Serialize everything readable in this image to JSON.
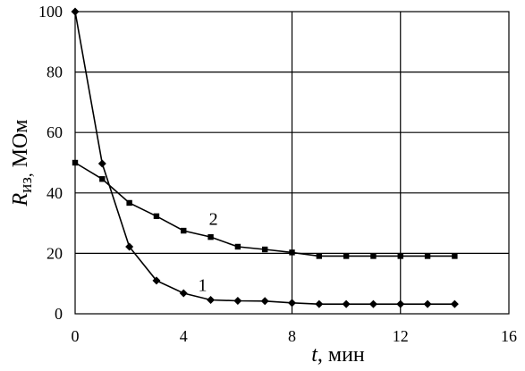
{
  "chart_data": {
    "type": "line",
    "xlabel": {
      "var": "t",
      "unit": ", мин"
    },
    "ylabel": {
      "var": "R",
      "sub": "из,",
      "unit": " МОм"
    },
    "xlim": [
      0,
      16
    ],
    "ylim": [
      0,
      100
    ],
    "xticks": [
      0,
      4,
      8,
      12,
      16
    ],
    "yticks": [
      0,
      20,
      40,
      60,
      80,
      100
    ],
    "grid": "horizontal at y ticks; vertical at x = 8 and 12",
    "series": [
      {
        "name": "1",
        "marker": "diamond",
        "x": [
          0,
          1,
          2,
          3,
          4,
          5,
          6,
          7,
          8,
          9,
          10,
          11,
          12,
          13,
          14
        ],
        "y": [
          100,
          49.7,
          22.2,
          11.0,
          6.8,
          4.6,
          4.3,
          4.2,
          3.6,
          3.2,
          3.2,
          3.2,
          3.2,
          3.2,
          3.2
        ]
      },
      {
        "name": "2",
        "marker": "square",
        "x": [
          0,
          1,
          2,
          3,
          4,
          5,
          6,
          7,
          8,
          9,
          10,
          11,
          12,
          13,
          14
        ],
        "y": [
          50,
          44.6,
          36.7,
          32.3,
          27.5,
          25.4,
          22.2,
          21.3,
          20.3,
          19.1,
          19.1,
          19.1,
          19.1,
          19.1,
          19.1
        ]
      }
    ]
  }
}
